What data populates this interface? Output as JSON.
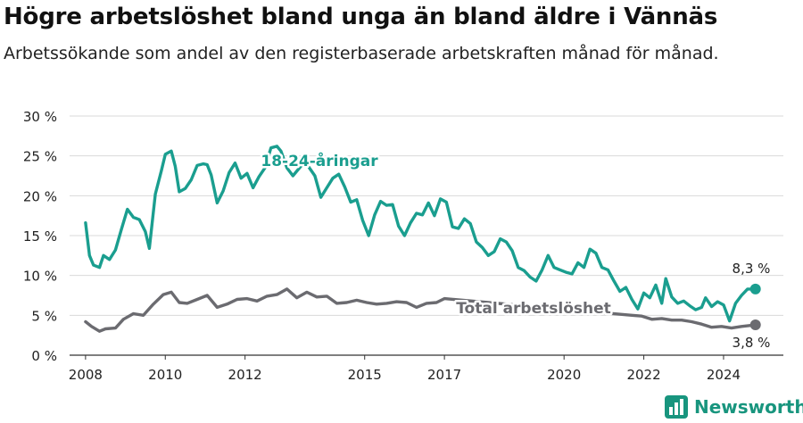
{
  "title": "Högre arbetslöshet bland unga än bland äldre i Vännäs",
  "subtitle": "Arbetssökande som andel av den registerbaserade arbetskraften månad för månad.",
  "brand": {
    "name": "Newsworthy",
    "icon": "newsworthy-logo-icon"
  },
  "colors": {
    "youth": "#1a9e8f",
    "total": "#6b6b70",
    "grid": "#d9d9d9",
    "axis": "#333333",
    "brand": "#18957e"
  },
  "chart_data": {
    "type": "line",
    "x_unit": "year",
    "ylim": [
      0,
      30
    ],
    "xlim": [
      2007.6,
      2025.5
    ],
    "y_ticks": [
      0,
      5,
      10,
      15,
      20,
      25,
      30
    ],
    "y_tick_labels": [
      "0 %",
      "5 %",
      "10 %",
      "15 %",
      "20 %",
      "25 %",
      "30 %"
    ],
    "x_ticks": [
      2008,
      2010,
      2012,
      2015,
      2017,
      2020,
      2022,
      2024
    ],
    "x_tick_labels": [
      "2008",
      "2010",
      "2012",
      "2015",
      "2017",
      "2020",
      "2022",
      "2024"
    ],
    "grid": "horizontal",
    "series": [
      {
        "name": "18-24-åringar",
        "points": [
          [
            2008.0,
            16.6
          ],
          [
            2008.1,
            12.5
          ],
          [
            2008.2,
            11.3
          ],
          [
            2008.35,
            11.0
          ],
          [
            2008.45,
            12.5
          ],
          [
            2008.6,
            12.0
          ],
          [
            2008.75,
            13.2
          ],
          [
            2008.9,
            15.8
          ],
          [
            2009.05,
            18.3
          ],
          [
            2009.2,
            17.3
          ],
          [
            2009.35,
            17.0
          ],
          [
            2009.5,
            15.5
          ],
          [
            2009.6,
            13.4
          ],
          [
            2009.75,
            20.2
          ],
          [
            2009.9,
            23.1
          ],
          [
            2010.0,
            25.2
          ],
          [
            2010.15,
            25.6
          ],
          [
            2010.25,
            23.7
          ],
          [
            2010.35,
            20.5
          ],
          [
            2010.5,
            20.9
          ],
          [
            2010.65,
            22.0
          ],
          [
            2010.8,
            23.8
          ],
          [
            2010.95,
            24.0
          ],
          [
            2011.05,
            23.9
          ],
          [
            2011.15,
            22.6
          ],
          [
            2011.3,
            19.1
          ],
          [
            2011.45,
            20.6
          ],
          [
            2011.6,
            22.9
          ],
          [
            2011.75,
            24.1
          ],
          [
            2011.9,
            22.2
          ],
          [
            2012.05,
            22.8
          ],
          [
            2012.2,
            21.0
          ],
          [
            2012.35,
            22.4
          ],
          [
            2012.5,
            23.5
          ],
          [
            2012.65,
            26.0
          ],
          [
            2012.8,
            26.2
          ],
          [
            2012.9,
            25.6
          ],
          [
            2013.05,
            23.5
          ],
          [
            2013.2,
            22.5
          ],
          [
            2013.5,
            24.3
          ],
          [
            2013.75,
            22.5
          ],
          [
            2013.9,
            19.8
          ],
          [
            2014.05,
            21.0
          ],
          [
            2014.2,
            22.2
          ],
          [
            2014.35,
            22.7
          ],
          [
            2014.5,
            21.1
          ],
          [
            2014.65,
            19.2
          ],
          [
            2014.8,
            19.5
          ],
          [
            2014.95,
            16.9
          ],
          [
            2015.1,
            15.0
          ],
          [
            2015.25,
            17.6
          ],
          [
            2015.4,
            19.3
          ],
          [
            2015.55,
            18.8
          ],
          [
            2015.7,
            18.9
          ],
          [
            2015.85,
            16.2
          ],
          [
            2016.0,
            15.0
          ],
          [
            2016.15,
            16.6
          ],
          [
            2016.3,
            17.8
          ],
          [
            2016.45,
            17.6
          ],
          [
            2016.6,
            19.1
          ],
          [
            2016.75,
            17.5
          ],
          [
            2016.9,
            19.6
          ],
          [
            2017.05,
            19.2
          ],
          [
            2017.2,
            16.1
          ],
          [
            2017.35,
            15.9
          ],
          [
            2017.5,
            17.1
          ],
          [
            2017.65,
            16.5
          ],
          [
            2017.8,
            14.2
          ],
          [
            2017.95,
            13.5
          ],
          [
            2018.1,
            12.5
          ],
          [
            2018.25,
            13.0
          ],
          [
            2018.4,
            14.6
          ],
          [
            2018.55,
            14.2
          ],
          [
            2018.7,
            13.1
          ],
          [
            2018.85,
            11.0
          ],
          [
            2019.0,
            10.6
          ],
          [
            2019.15,
            9.8
          ],
          [
            2019.3,
            9.3
          ],
          [
            2019.45,
            10.7
          ],
          [
            2019.6,
            12.5
          ],
          [
            2019.75,
            11.0
          ],
          [
            2019.9,
            10.7
          ],
          [
            2020.05,
            10.4
          ],
          [
            2020.2,
            10.2
          ],
          [
            2020.35,
            11.6
          ],
          [
            2020.5,
            11.0
          ],
          [
            2020.65,
            13.3
          ],
          [
            2020.8,
            12.8
          ],
          [
            2020.95,
            11.0
          ],
          [
            2021.1,
            10.7
          ],
          [
            2021.25,
            9.3
          ],
          [
            2021.4,
            8.0
          ],
          [
            2021.55,
            8.5
          ],
          [
            2021.7,
            7.0
          ],
          [
            2021.85,
            5.8
          ],
          [
            2022.0,
            7.8
          ],
          [
            2022.15,
            7.2
          ],
          [
            2022.3,
            8.8
          ],
          [
            2022.45,
            6.5
          ],
          [
            2022.55,
            9.6
          ],
          [
            2022.7,
            7.3
          ],
          [
            2022.85,
            6.5
          ],
          [
            2023.0,
            6.8
          ],
          [
            2023.15,
            6.2
          ],
          [
            2023.3,
            5.7
          ],
          [
            2023.45,
            6.0
          ],
          [
            2023.55,
            7.2
          ],
          [
            2023.7,
            6.1
          ],
          [
            2023.85,
            6.7
          ],
          [
            2024.0,
            6.3
          ],
          [
            2024.15,
            4.3
          ],
          [
            2024.3,
            6.5
          ],
          [
            2024.45,
            7.5
          ],
          [
            2024.6,
            8.3
          ],
          [
            2024.8,
            8.3
          ]
        ]
      },
      {
        "name": "Total arbetslöshet",
        "points": [
          [
            2008.0,
            4.2
          ],
          [
            2008.15,
            3.6
          ],
          [
            2008.35,
            3.0
          ],
          [
            2008.5,
            3.3
          ],
          [
            2008.75,
            3.4
          ],
          [
            2008.95,
            4.5
          ],
          [
            2009.2,
            5.2
          ],
          [
            2009.45,
            5.0
          ],
          [
            2009.7,
            6.4
          ],
          [
            2009.95,
            7.6
          ],
          [
            2010.15,
            7.9
          ],
          [
            2010.35,
            6.6
          ],
          [
            2010.55,
            6.5
          ],
          [
            2010.8,
            7.0
          ],
          [
            2011.05,
            7.5
          ],
          [
            2011.3,
            6.0
          ],
          [
            2011.55,
            6.4
          ],
          [
            2011.8,
            7.0
          ],
          [
            2012.05,
            7.1
          ],
          [
            2012.3,
            6.8
          ],
          [
            2012.55,
            7.4
          ],
          [
            2012.8,
            7.6
          ],
          [
            2013.05,
            8.3
          ],
          [
            2013.3,
            7.2
          ],
          [
            2013.55,
            7.9
          ],
          [
            2013.8,
            7.3
          ],
          [
            2014.05,
            7.4
          ],
          [
            2014.3,
            6.5
          ],
          [
            2014.55,
            6.6
          ],
          [
            2014.8,
            6.9
          ],
          [
            2015.05,
            6.6
          ],
          [
            2015.3,
            6.4
          ],
          [
            2015.55,
            6.5
          ],
          [
            2015.8,
            6.7
          ],
          [
            2016.05,
            6.6
          ],
          [
            2016.3,
            6.0
          ],
          [
            2016.55,
            6.5
          ],
          [
            2016.8,
            6.6
          ],
          [
            2017.0,
            7.1
          ],
          [
            2021.7,
            5.0
          ],
          [
            2021.95,
            4.9
          ],
          [
            2022.2,
            4.5
          ],
          [
            2022.45,
            4.6
          ],
          [
            2022.7,
            4.4
          ],
          [
            2022.95,
            4.4
          ],
          [
            2023.2,
            4.2
          ],
          [
            2023.45,
            3.9
          ],
          [
            2023.7,
            3.5
          ],
          [
            2023.95,
            3.6
          ],
          [
            2024.2,
            3.4
          ],
          [
            2024.45,
            3.6
          ],
          [
            2024.8,
            3.8
          ]
        ]
      }
    ],
    "annotations": {
      "youth_label": "18-24-åringar",
      "total_label": "Total arbetslöshet",
      "youth_end_label": "8,3 %",
      "total_end_label": "3,8 %"
    }
  }
}
